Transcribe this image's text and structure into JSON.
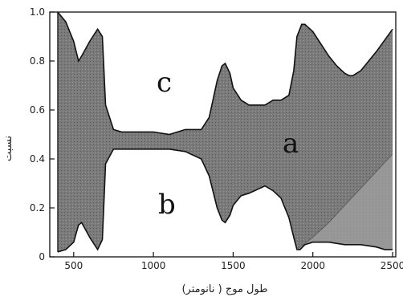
{
  "chart_data": {
    "type": "area",
    "xlabel": "طول موج ( نانومتر)",
    "ylabel": "نسبت",
    "xlim": [
      350,
      2520
    ],
    "ylim": [
      0,
      1
    ],
    "xticks": [
      500,
      1000,
      1500,
      2000,
      2500
    ],
    "yticks": [
      0,
      0.2,
      0.4,
      0.6,
      0.8,
      1.0
    ],
    "ytick_labels": [
      "0",
      "0.2",
      "0.4",
      "0.6",
      "0.8",
      "1.0"
    ],
    "region_labels": {
      "a": "a",
      "b": "b",
      "c": "c"
    },
    "series": [
      {
        "x": [
          400,
          450,
          500,
          530,
          550,
          600,
          650,
          680,
          700,
          750,
          800,
          900,
          1000,
          1100,
          1200,
          1300,
          1350,
          1400,
          1430,
          1450,
          1480,
          1500,
          1550,
          1600,
          1700,
          1750,
          1800,
          1850,
          1880,
          1900,
          1930,
          1950,
          2000,
          2050,
          2100,
          2150,
          2200,
          2230,
          2250,
          2300,
          2400,
          2500
        ],
        "values": [
          1.0,
          0.96,
          0.88,
          0.8,
          0.82,
          0.88,
          0.93,
          0.9,
          0.62,
          0.52,
          0.51,
          0.51,
          0.51,
          0.5,
          0.52,
          0.52,
          0.57,
          0.72,
          0.78,
          0.79,
          0.75,
          0.69,
          0.64,
          0.62,
          0.62,
          0.64,
          0.64,
          0.66,
          0.76,
          0.9,
          0.95,
          0.95,
          0.92,
          0.87,
          0.82,
          0.78,
          0.75,
          0.74,
          0.74,
          0.76,
          0.84,
          0.93
        ]
      },
      {
        "x": [
          400,
          450,
          500,
          530,
          550,
          600,
          650,
          680,
          700,
          750,
          800,
          900,
          1000,
          1100,
          1200,
          1300,
          1350,
          1400,
          1430,
          1450,
          1480,
          1500,
          1550,
          1600,
          1700,
          1750,
          1800,
          1850,
          1880,
          1900,
          1920,
          1950,
          2000,
          2100,
          2200,
          2300,
          2400,
          2450,
          2500
        ],
        "values": [
          0.02,
          0.03,
          0.06,
          0.13,
          0.14,
          0.08,
          0.03,
          0.07,
          0.38,
          0.44,
          0.44,
          0.44,
          0.44,
          0.44,
          0.43,
          0.4,
          0.33,
          0.2,
          0.15,
          0.14,
          0.17,
          0.21,
          0.25,
          0.26,
          0.29,
          0.27,
          0.24,
          0.16,
          0.08,
          0.03,
          0.03,
          0.05,
          0.06,
          0.06,
          0.05,
          0.05,
          0.04,
          0.03,
          0.03
        ]
      },
      {
        "x": [
          1900,
          2000,
          2100,
          2200,
          2300,
          2400,
          2500
        ],
        "values": [
          0.03,
          0.08,
          0.14,
          0.21,
          0.28,
          0.35,
          0.42
        ]
      }
    ],
    "colors": {
      "band": "#7a7a7a",
      "sub_band": "#9c9c9c",
      "outline": "#111111"
    },
    "grid": false
  }
}
